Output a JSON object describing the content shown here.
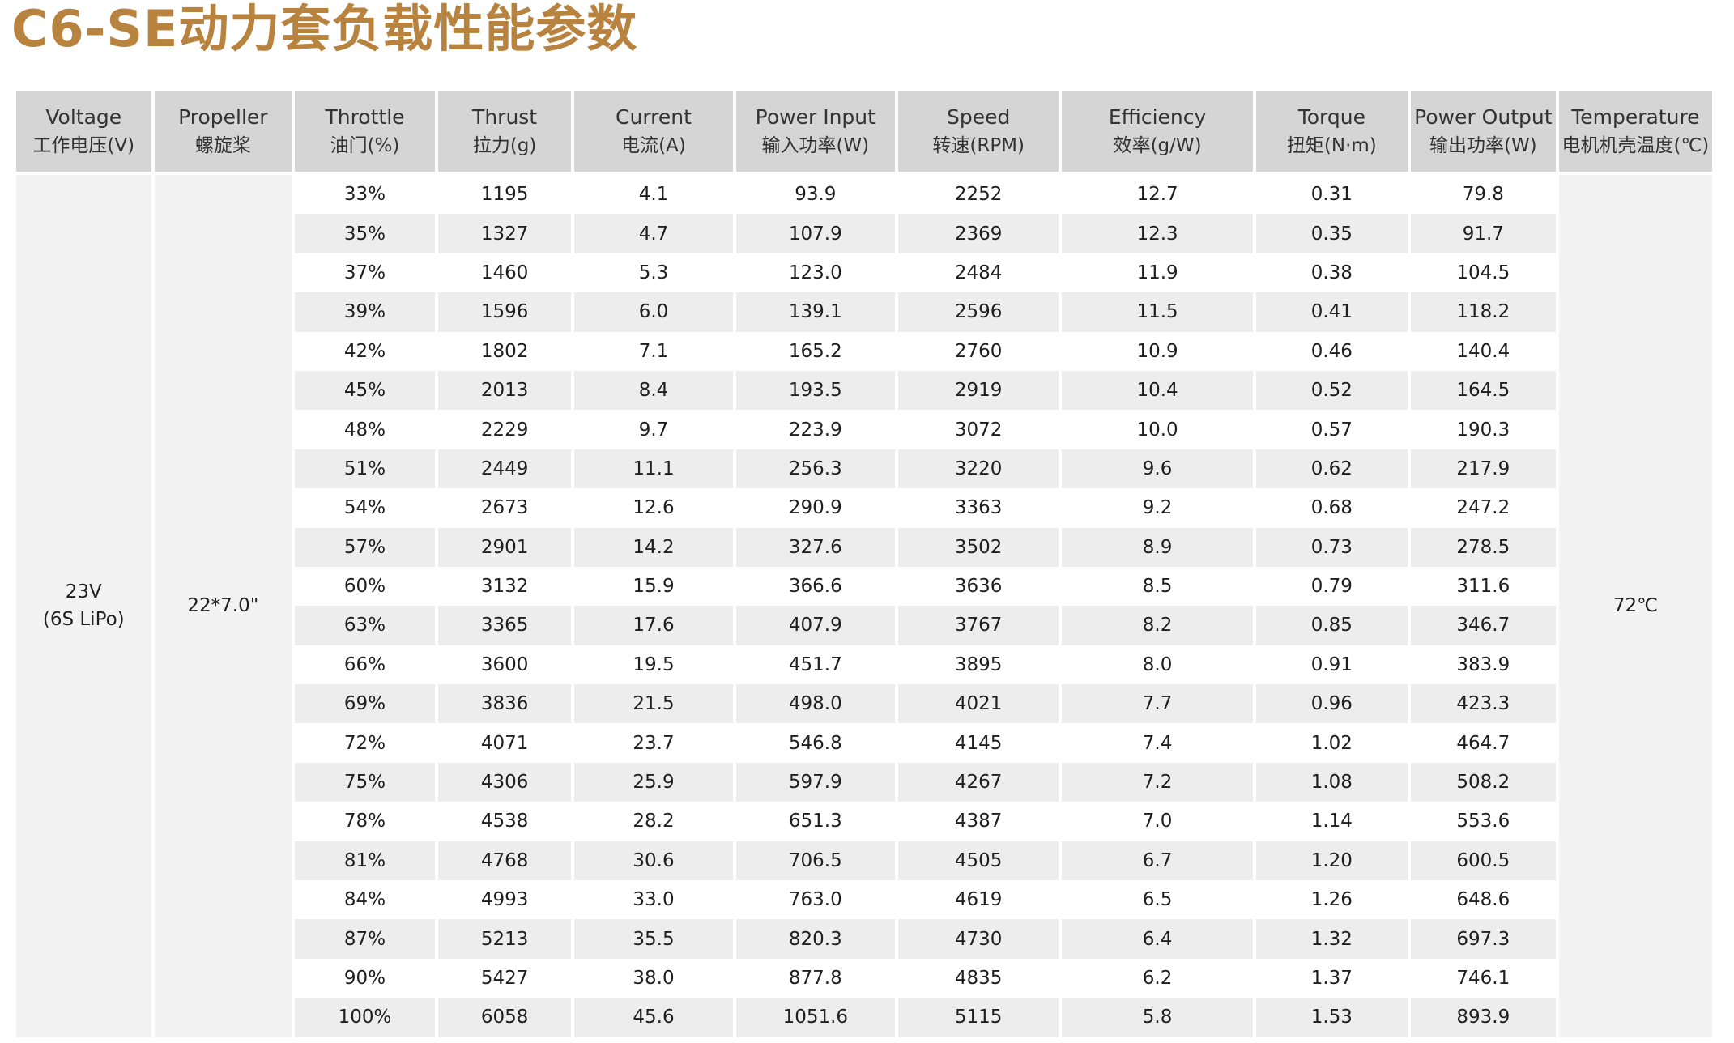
{
  "title": "C6-SE动力套负载性能参数",
  "columns": [
    {
      "en": "Voltage",
      "cn": "工作电压(V)"
    },
    {
      "en": "Propeller",
      "cn": "螺旋桨"
    },
    {
      "en": "Throttle",
      "cn": "油门(%)"
    },
    {
      "en": "Thrust",
      "cn": "拉力(g)"
    },
    {
      "en": "Current",
      "cn": "电流(A)"
    },
    {
      "en": "Power Input",
      "cn": "输入功率(W)"
    },
    {
      "en": "Speed",
      "cn": "转速(RPM)"
    },
    {
      "en": "Efficiency",
      "cn": "效率(g/W)"
    },
    {
      "en": "Torque",
      "cn": "扭矩(N·m)"
    },
    {
      "en": "Power Output",
      "cn": "输出功率(W)"
    },
    {
      "en": "Temperature",
      "cn": "电机机壳温度(℃)"
    }
  ],
  "voltage": {
    "line1": "23V",
    "line2": "(6S LiPo)"
  },
  "propeller": "22*7.0\"",
  "temperature": "72℃",
  "rows": [
    [
      "33%",
      "1195",
      "4.1",
      "93.9",
      "2252",
      "12.7",
      "0.31",
      "79.8"
    ],
    [
      "35%",
      "1327",
      "4.7",
      "107.9",
      "2369",
      "12.3",
      "0.35",
      "91.7"
    ],
    [
      "37%",
      "1460",
      "5.3",
      "123.0",
      "2484",
      "11.9",
      "0.38",
      "104.5"
    ],
    [
      "39%",
      "1596",
      "6.0",
      "139.1",
      "2596",
      "11.5",
      "0.41",
      "118.2"
    ],
    [
      "42%",
      "1802",
      "7.1",
      "165.2",
      "2760",
      "10.9",
      "0.46",
      "140.4"
    ],
    [
      "45%",
      "2013",
      "8.4",
      "193.5",
      "2919",
      "10.4",
      "0.52",
      "164.5"
    ],
    [
      "48%",
      "2229",
      "9.7",
      "223.9",
      "3072",
      "10.0",
      "0.57",
      "190.3"
    ],
    [
      "51%",
      "2449",
      "11.1",
      "256.3",
      "3220",
      "9.6",
      "0.62",
      "217.9"
    ],
    [
      "54%",
      "2673",
      "12.6",
      "290.9",
      "3363",
      "9.2",
      "0.68",
      "247.2"
    ],
    [
      "57%",
      "2901",
      "14.2",
      "327.6",
      "3502",
      "8.9",
      "0.73",
      "278.5"
    ],
    [
      "60%",
      "3132",
      "15.9",
      "366.6",
      "3636",
      "8.5",
      "0.79",
      "311.6"
    ],
    [
      "63%",
      "3365",
      "17.6",
      "407.9",
      "3767",
      "8.2",
      "0.85",
      "346.7"
    ],
    [
      "66%",
      "3600",
      "19.5",
      "451.7",
      "3895",
      "8.0",
      "0.91",
      "383.9"
    ],
    [
      "69%",
      "3836",
      "21.5",
      "498.0",
      "4021",
      "7.7",
      "0.96",
      "423.3"
    ],
    [
      "72%",
      "4071",
      "23.7",
      "546.8",
      "4145",
      "7.4",
      "1.02",
      "464.7"
    ],
    [
      "75%",
      "4306",
      "25.9",
      "597.9",
      "4267",
      "7.2",
      "1.08",
      "508.2"
    ],
    [
      "78%",
      "4538",
      "28.2",
      "651.3",
      "4387",
      "7.0",
      "1.14",
      "553.6"
    ],
    [
      "81%",
      "4768",
      "30.6",
      "706.5",
      "4505",
      "6.7",
      "1.20",
      "600.5"
    ],
    [
      "84%",
      "4993",
      "33.0",
      "763.0",
      "4619",
      "6.5",
      "1.26",
      "648.6"
    ],
    [
      "87%",
      "5213",
      "35.5",
      "820.3",
      "4730",
      "6.4",
      "1.32",
      "697.3"
    ],
    [
      "90%",
      "5427",
      "38.0",
      "877.8",
      "4835",
      "6.2",
      "1.37",
      "746.1"
    ],
    [
      "100%",
      "6058",
      "45.6",
      "1051.6",
      "5115",
      "5.8",
      "1.53",
      "893.9"
    ]
  ]
}
